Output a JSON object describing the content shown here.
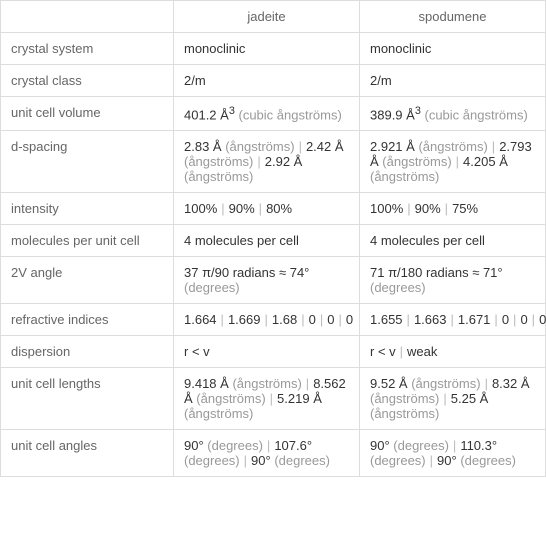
{
  "headers": {
    "empty": "",
    "col1": "jadeite",
    "col2": "spodumene"
  },
  "rows": [
    {
      "label": "crystal system",
      "col1": "monoclinic",
      "col2": "monoclinic"
    },
    {
      "label": "crystal class",
      "col1": "2/m",
      "col2": "2/m"
    },
    {
      "label": "unit cell volume",
      "col1_html": "401.2 Å<sup>3</sup> <span class=\"unit\">(cubic ångströms)</span>",
      "col2_html": "389.9 Å<sup>3</sup> <span class=\"unit\">(cubic ångströms)</span>"
    },
    {
      "label": "d-spacing",
      "col1_html": "2.83 Å <span class=\"unit\">(ångströms)</span><span class=\"sep\">|</span>2.42 Å <span class=\"unit\">(ångströms)</span><span class=\"sep\">|</span>2.92 Å <span class=\"unit\">(ångströms)</span>",
      "col2_html": "2.921 Å <span class=\"unit\">(ångströms)</span><span class=\"sep\">|</span>2.793 Å <span class=\"unit\">(ångströms)</span><span class=\"sep\">|</span>4.205 Å <span class=\"unit\">(ångströms)</span>"
    },
    {
      "label": "intensity",
      "col1_html": "100%<span class=\"sep\">|</span>90%<span class=\"sep\">|</span>80%",
      "col2_html": "100%<span class=\"sep\">|</span>90%<span class=\"sep\">|</span>75%"
    },
    {
      "label": "molecules per unit cell",
      "col1": "4 molecules per cell",
      "col2": "4 molecules per cell"
    },
    {
      "label": "2V angle",
      "col1_html": "37 π/90 radians ≈ 74° <span class=\"unit\">(degrees)</span>",
      "col2_html": "71 π/180 radians ≈ 71° <span class=\"unit\">(degrees)</span>"
    },
    {
      "label": "refractive indices",
      "col1_html": "1.664<span class=\"sep\">|</span>1.669<span class=\"sep\">|</span>1.68<span class=\"sep\">|</span>0<span class=\"sep\">|</span>0<span class=\"sep\">|</span>0",
      "col2_html": "1.655<span class=\"sep\">|</span>1.663<span class=\"sep\">|</span>1.671<span class=\"sep\">|</span>0<span class=\"sep\">|</span>0<span class=\"sep\">|</span>0"
    },
    {
      "label": "dispersion",
      "col1": "r < v",
      "col2_html": "r < v<span class=\"sep\">|</span>weak"
    },
    {
      "label": "unit cell lengths",
      "col1_html": "9.418 Å <span class=\"unit\">(ångströms)</span><span class=\"sep\">|</span>8.562 Å <span class=\"unit\">(ångströms)</span><span class=\"sep\">|</span>5.219 Å <span class=\"unit\">(ångströms)</span>",
      "col2_html": "9.52 Å <span class=\"unit\">(ångströms)</span><span class=\"sep\">|</span>8.32 Å <span class=\"unit\">(ångströms)</span><span class=\"sep\">|</span>5.25 Å <span class=\"unit\">(ångströms)</span>"
    },
    {
      "label": "unit cell angles",
      "col1_html": "90° <span class=\"unit\">(degrees)</span><span class=\"sep\">|</span>107.6° <span class=\"unit\">(degrees)</span><span class=\"sep\">|</span>90° <span class=\"unit\">(degrees)</span>",
      "col2_html": "90° <span class=\"unit\">(degrees)</span><span class=\"sep\">|</span>110.3° <span class=\"unit\">(degrees)</span><span class=\"sep\">|</span>90° <span class=\"unit\">(degrees)</span>"
    }
  ]
}
